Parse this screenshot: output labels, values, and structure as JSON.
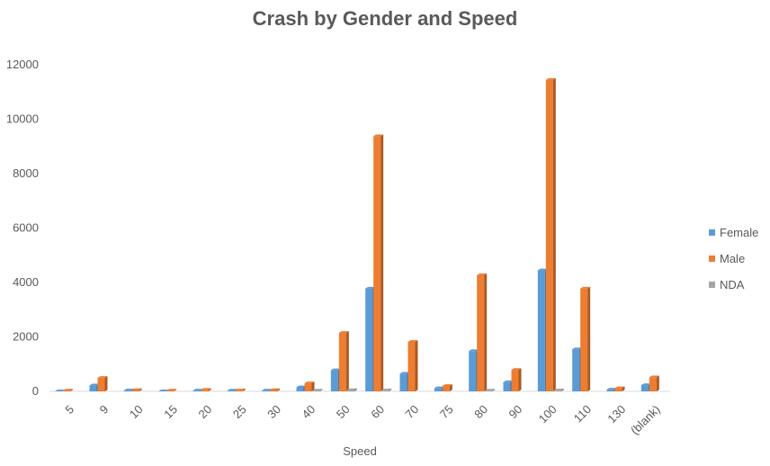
{
  "chart_data": {
    "type": "bar",
    "title": "Crash by Gender and Speed",
    "xlabel": "Speed",
    "ylabel": "",
    "ylim": [
      0,
      12000
    ],
    "yticks": [
      0,
      2000,
      4000,
      6000,
      8000,
      10000,
      12000
    ],
    "grid": false,
    "legend_position": "right",
    "categories": [
      "5",
      "9",
      "10",
      "15",
      "20",
      "25",
      "30",
      "40",
      "50",
      "60",
      "70",
      "75",
      "80",
      "90",
      "100",
      "110",
      "130",
      "(blank)"
    ],
    "series": [
      {
        "name": "Female",
        "color": "#5B9BD5",
        "values": [
          5,
          220,
          40,
          5,
          30,
          30,
          30,
          150,
          780,
          3780,
          650,
          120,
          1480,
          340,
          4450,
          1550,
          70,
          230
        ]
      },
      {
        "name": "Male",
        "color": "#ED7D31",
        "values": [
          30,
          500,
          50,
          30,
          60,
          40,
          50,
          300,
          2150,
          9380,
          1820,
          200,
          4270,
          790,
          11450,
          3780,
          120,
          520
        ]
      },
      {
        "name": "NDA",
        "color": "#A5A5A5",
        "values": [
          0,
          0,
          0,
          0,
          0,
          0,
          0,
          30,
          50,
          40,
          0,
          0,
          30,
          0,
          40,
          0,
          0,
          0
        ]
      }
    ]
  }
}
